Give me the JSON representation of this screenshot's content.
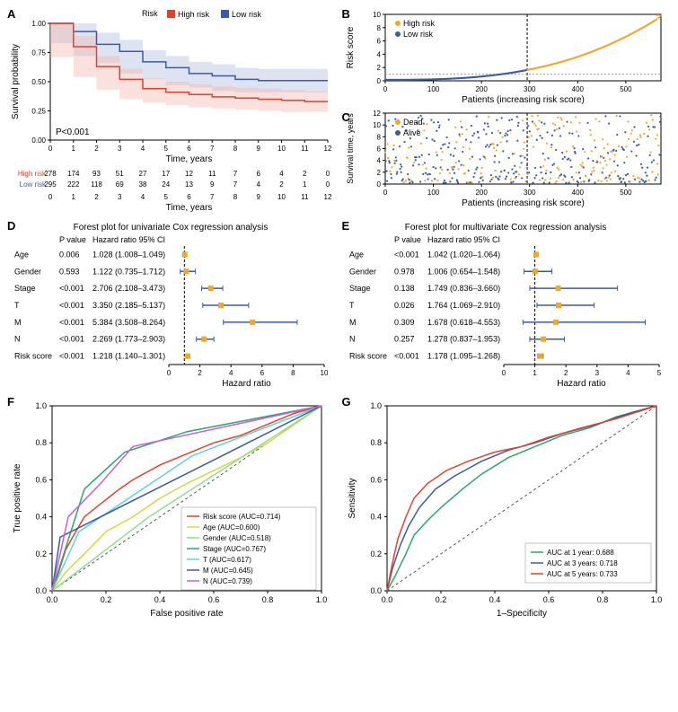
{
  "colors": {
    "high_risk": "#e6402a",
    "low_risk": "#3a5ba8",
    "high_risk_fill": "#f4b4aa",
    "low_risk_fill": "#aab8dd",
    "orange": "#f5a623",
    "black": "#000000",
    "grid": "#d0d0d0",
    "axis": "#000000",
    "white": "#ffffff"
  },
  "panel_a": {
    "label": "A",
    "legend_title": "Risk",
    "legend": [
      "High risk",
      "Low risk"
    ],
    "ylabel": "Survival probability",
    "xlabel": "Time, years",
    "pvalue": "P<0.001",
    "xticks": [
      0,
      1,
      2,
      3,
      4,
      5,
      6,
      7,
      8,
      9,
      10,
      11,
      12
    ],
    "yticks": [
      0.0,
      0.25,
      0.5,
      0.75,
      1.0
    ],
    "high_risk_curve": [
      [
        0,
        1.0
      ],
      [
        1,
        0.8
      ],
      [
        2,
        0.63
      ],
      [
        3,
        0.52
      ],
      [
        4,
        0.44
      ],
      [
        5,
        0.41
      ],
      [
        6,
        0.39
      ],
      [
        7,
        0.37
      ],
      [
        8,
        0.36
      ],
      [
        9,
        0.35
      ],
      [
        10,
        0.34
      ],
      [
        11,
        0.33
      ],
      [
        12,
        0.33
      ]
    ],
    "low_risk_curve": [
      [
        0,
        1.0
      ],
      [
        1,
        0.93
      ],
      [
        2,
        0.82
      ],
      [
        3,
        0.76
      ],
      [
        4,
        0.67
      ],
      [
        5,
        0.62
      ],
      [
        6,
        0.57
      ],
      [
        7,
        0.55
      ],
      [
        8,
        0.52
      ],
      [
        9,
        0.51
      ],
      [
        10,
        0.51
      ],
      [
        11,
        0.51
      ],
      [
        12,
        0.51
      ]
    ],
    "risk_table": {
      "rows": [
        {
          "label": "High risk",
          "color": "#e6402a",
          "values": [
            278,
            174,
            93,
            51,
            27,
            17,
            12,
            11,
            7,
            6,
            4,
            2,
            0
          ]
        },
        {
          "label": "Low risk",
          "color": "#3a5ba8",
          "values": [
            295,
            222,
            118,
            69,
            38,
            24,
            13,
            9,
            7,
            4,
            2,
            1,
            0
          ]
        }
      ]
    }
  },
  "panel_b": {
    "label": "B",
    "ylabel": "Risk score",
    "xlabel": "Patients (increasing risk score)",
    "legend": [
      {
        "label": "High risk",
        "color": "#f5a623"
      },
      {
        "label": "Low risk",
        "color": "#3a5ba8"
      }
    ],
    "xticks": [
      0,
      100,
      200,
      300,
      400,
      500
    ],
    "yticks": [
      0,
      2,
      4,
      6,
      8,
      10
    ],
    "cutoff_x": 295,
    "n_patients": 573
  },
  "panel_c": {
    "label": "C",
    "ylabel": "Survival time, years",
    "xlabel": "Patients (increasing risk score)",
    "legend": [
      {
        "label": "Dead",
        "color": "#f5a623"
      },
      {
        "label": "Alive",
        "color": "#3a5ba8"
      }
    ],
    "xticks": [
      0,
      100,
      200,
      300,
      400,
      500
    ],
    "yticks": [
      0,
      2,
      4,
      6,
      8,
      10,
      12
    ],
    "cutoff_x": 295,
    "n_patients": 573
  },
  "panel_d": {
    "label": "D",
    "title": "Forest plot for univariate Cox regression analysis",
    "xlabel": "Hazard ratio",
    "columns": [
      "",
      "P value",
      "Hazard ratio 95% CI"
    ],
    "xticks": [
      0,
      2,
      4,
      6,
      8,
      10
    ],
    "ref_line": 1,
    "rows": [
      {
        "name": "Age",
        "p": "0.006",
        "hr_text": "1.028 (1.008–1.049)",
        "hr": 1.028,
        "lo": 1.008,
        "hi": 1.049
      },
      {
        "name": "Gender",
        "p": "0.593",
        "hr_text": "1.122 (0.735–1.712)",
        "hr": 1.122,
        "lo": 0.735,
        "hi": 1.712
      },
      {
        "name": "Stage",
        "p": "<0.001",
        "hr_text": "2.706 (2.108–3.473)",
        "hr": 2.706,
        "lo": 2.108,
        "hi": 3.473
      },
      {
        "name": "T",
        "p": "<0.001",
        "hr_text": "3.350 (2.185–5.137)",
        "hr": 3.35,
        "lo": 2.185,
        "hi": 5.137
      },
      {
        "name": "M",
        "p": "<0.001",
        "hr_text": "5.384 (3.508–8.264)",
        "hr": 5.384,
        "lo": 3.508,
        "hi": 8.264
      },
      {
        "name": "N",
        "p": "<0.001",
        "hr_text": "2.269 (1.773–2.903)",
        "hr": 2.269,
        "lo": 1.773,
        "hi": 2.903
      },
      {
        "name": "Risk score",
        "p": "<0.001",
        "hr_text": "1.218 (1.140–1.301)",
        "hr": 1.218,
        "lo": 1.14,
        "hi": 1.301
      }
    ]
  },
  "panel_e": {
    "label": "E",
    "title": "Forest plot for multivariate Cox regression analysis",
    "xlabel": "Hazard ratio",
    "columns": [
      "",
      "P value",
      "Hazard ratio 95% CI"
    ],
    "xticks": [
      0,
      1,
      2,
      3,
      4,
      5
    ],
    "ref_line": 1,
    "rows": [
      {
        "name": "Age",
        "p": "<0.001",
        "hr_text": "1.042 (1.020–1.064)",
        "hr": 1.042,
        "lo": 1.02,
        "hi": 1.064
      },
      {
        "name": "Gender",
        "p": "0.978",
        "hr_text": "1.006 (0.654–1.548)",
        "hr": 1.006,
        "lo": 0.654,
        "hi": 1.548
      },
      {
        "name": "Stage",
        "p": "0.138",
        "hr_text": "1.749 (0.836–3.660)",
        "hr": 1.749,
        "lo": 0.836,
        "hi": 3.66
      },
      {
        "name": "T",
        "p": "0.026",
        "hr_text": "1.764 (1.069–2.910)",
        "hr": 1.764,
        "lo": 1.069,
        "hi": 2.91
      },
      {
        "name": "M",
        "p": "0.309",
        "hr_text": "1.678 (0.618–4.553)",
        "hr": 1.678,
        "lo": 0.618,
        "hi": 4.553
      },
      {
        "name": "N",
        "p": "0.257",
        "hr_text": "1.278 (0.837–1.953)",
        "hr": 1.278,
        "lo": 0.837,
        "hi": 1.953
      },
      {
        "name": "Risk score",
        "p": "<0.001",
        "hr_text": "1.178 (1.095–1.268)",
        "hr": 1.178,
        "lo": 1.095,
        "hi": 1.268
      }
    ]
  },
  "panel_f": {
    "label": "F",
    "ylabel": "True positive rate",
    "xlabel": "False positive rate",
    "ticks": [
      0.0,
      0.2,
      0.4,
      0.6,
      0.8,
      1.0
    ],
    "curves": [
      {
        "label": "Risk score (AUC=0.714)",
        "color": "#e6402a",
        "pts": [
          [
            0,
            0
          ],
          [
            0.02,
            0.08
          ],
          [
            0.05,
            0.22
          ],
          [
            0.08,
            0.3
          ],
          [
            0.12,
            0.4
          ],
          [
            0.18,
            0.47
          ],
          [
            0.25,
            0.55
          ],
          [
            0.3,
            0.6
          ],
          [
            0.4,
            0.68
          ],
          [
            0.5,
            0.74
          ],
          [
            0.6,
            0.8
          ],
          [
            0.7,
            0.84
          ],
          [
            0.8,
            0.9
          ],
          [
            0.9,
            0.96
          ],
          [
            1,
            1
          ]
        ]
      },
      {
        "label": "Age (AUC=0.600)",
        "color": "#d8d83a",
        "pts": [
          [
            0,
            0
          ],
          [
            0.05,
            0.1
          ],
          [
            0.12,
            0.2
          ],
          [
            0.2,
            0.32
          ],
          [
            0.3,
            0.4
          ],
          [
            0.4,
            0.5
          ],
          [
            0.5,
            0.58
          ],
          [
            0.6,
            0.65
          ],
          [
            0.7,
            0.72
          ],
          [
            0.8,
            0.8
          ],
          [
            0.9,
            0.9
          ],
          [
            1,
            1
          ]
        ]
      },
      {
        "label": "Gender (AUC=0.518)",
        "color": "#8fe08f",
        "pts": [
          [
            0,
            0
          ],
          [
            0.36,
            0.4
          ],
          [
            1,
            1
          ]
        ]
      },
      {
        "label": "Stage (AUC=0.767)",
        "color": "#2aa86b",
        "pts": [
          [
            0,
            0
          ],
          [
            0.12,
            0.55
          ],
          [
            0.27,
            0.75
          ],
          [
            0.5,
            0.86
          ],
          [
            1,
            1
          ]
        ]
      },
      {
        "label": "T (AUC=0.617)",
        "color": "#5dd5d5",
        "pts": [
          [
            0,
            0
          ],
          [
            0.1,
            0.32
          ],
          [
            0.52,
            0.73
          ],
          [
            1,
            1
          ]
        ]
      },
      {
        "label": "M (AUC=0.645)",
        "color": "#3a5ba8",
        "pts": [
          [
            0,
            0
          ],
          [
            0.03,
            0.29
          ],
          [
            1,
            1
          ]
        ]
      },
      {
        "label": "N (AUC=0.739)",
        "color": "#d25ad2",
        "pts": [
          [
            0,
            0
          ],
          [
            0.06,
            0.4
          ],
          [
            0.18,
            0.58
          ],
          [
            0.3,
            0.78
          ],
          [
            1,
            1
          ]
        ]
      }
    ]
  },
  "panel_g": {
    "label": "G",
    "ylabel": "Sensitivity",
    "xlabel": "1–Specificity",
    "ticks": [
      0.0,
      0.2,
      0.4,
      0.6,
      0.8,
      1.0
    ],
    "curves": [
      {
        "label": "AUC at 1 year: 0.688",
        "color": "#2aa86b",
        "pts": [
          [
            0,
            0
          ],
          [
            0.03,
            0.08
          ],
          [
            0.07,
            0.2
          ],
          [
            0.1,
            0.3
          ],
          [
            0.15,
            0.38
          ],
          [
            0.2,
            0.45
          ],
          [
            0.28,
            0.55
          ],
          [
            0.35,
            0.63
          ],
          [
            0.45,
            0.72
          ],
          [
            0.55,
            0.78
          ],
          [
            0.65,
            0.84
          ],
          [
            0.75,
            0.88
          ],
          [
            0.85,
            0.94
          ],
          [
            1,
            1
          ]
        ]
      },
      {
        "label": "AUC at 3 years: 0.718",
        "color": "#3a5ba8",
        "pts": [
          [
            0,
            0
          ],
          [
            0.02,
            0.12
          ],
          [
            0.05,
            0.25
          ],
          [
            0.08,
            0.35
          ],
          [
            0.12,
            0.45
          ],
          [
            0.18,
            0.55
          ],
          [
            0.25,
            0.62
          ],
          [
            0.35,
            0.7
          ],
          [
            0.45,
            0.76
          ],
          [
            0.55,
            0.8
          ],
          [
            0.65,
            0.85
          ],
          [
            0.78,
            0.9
          ],
          [
            0.9,
            0.96
          ],
          [
            1,
            1
          ]
        ]
      },
      {
        "label": "AUC at 5 years: 0.733",
        "color": "#e6402a",
        "pts": [
          [
            0,
            0
          ],
          [
            0.02,
            0.15
          ],
          [
            0.04,
            0.28
          ],
          [
            0.07,
            0.4
          ],
          [
            0.1,
            0.5
          ],
          [
            0.15,
            0.58
          ],
          [
            0.22,
            0.65
          ],
          [
            0.3,
            0.7
          ],
          [
            0.4,
            0.75
          ],
          [
            0.5,
            0.78
          ],
          [
            0.6,
            0.83
          ],
          [
            0.72,
            0.88
          ],
          [
            0.85,
            0.93
          ],
          [
            1,
            1
          ]
        ]
      }
    ]
  }
}
